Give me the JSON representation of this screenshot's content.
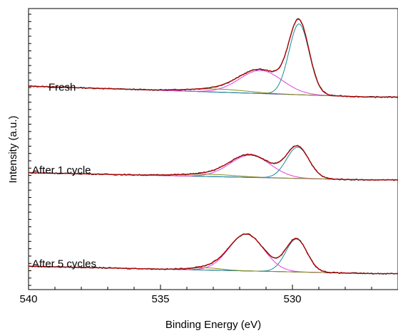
{
  "chart_data": {
    "type": "line",
    "title": "",
    "xlabel": "Binding Energy (eV)",
    "ylabel": "Intensity (a.u.)",
    "x_reversed": true,
    "xlim": [
      540,
      526
    ],
    "ylim": [
      0,
      1
    ],
    "y_ticks_labeled": false,
    "grid": false,
    "x_ticks": [
      {
        "value": 540,
        "label": "540"
      },
      {
        "value": 535,
        "label": "535"
      },
      {
        "value": 530,
        "label": "530"
      }
    ],
    "colors": {
      "envelope": "#c00000",
      "raw": "#303030",
      "peak_lattice": "#1a8a9a",
      "peak_oh": "#e040e0",
      "peak_minor": "#8a8a20",
      "background": "#3a3aa0"
    },
    "panels": [
      {
        "label": "Fresh",
        "baseline": 0.685,
        "bg_slope": 0.003,
        "components": [
          {
            "series": "peak_lattice",
            "center": 529.75,
            "height": 0.252,
            "fwhm": 0.9
          },
          {
            "series": "peak_oh",
            "center": 531.2,
            "height": 0.082,
            "fwhm": 1.9
          },
          {
            "series": "peak_minor",
            "center": 532.8,
            "height": 0.011,
            "fwhm": 2.6
          }
        ]
      },
      {
        "label": "After  1 cycle",
        "baseline": 0.39,
        "bg_slope": 0.002,
        "components": [
          {
            "series": "peak_lattice",
            "center": 529.8,
            "height": 0.111,
            "fwhm": 1.0
          },
          {
            "series": "peak_oh",
            "center": 531.6,
            "height": 0.079,
            "fwhm": 1.8
          },
          {
            "series": "peak_minor",
            "center": 533.2,
            "height": 0.008,
            "fwhm": 2.5
          }
        ]
      },
      {
        "label": "After  5 cycles",
        "baseline": 0.057,
        "bg_slope": 0.002,
        "components": [
          {
            "series": "peak_lattice",
            "center": 529.85,
            "height": 0.117,
            "fwhm": 0.95
          },
          {
            "series": "peak_oh",
            "center": 531.75,
            "height": 0.131,
            "fwhm": 1.55
          },
          {
            "series": "peak_minor",
            "center": 533.3,
            "height": 0.008,
            "fwhm": 1.4
          }
        ]
      }
    ]
  }
}
